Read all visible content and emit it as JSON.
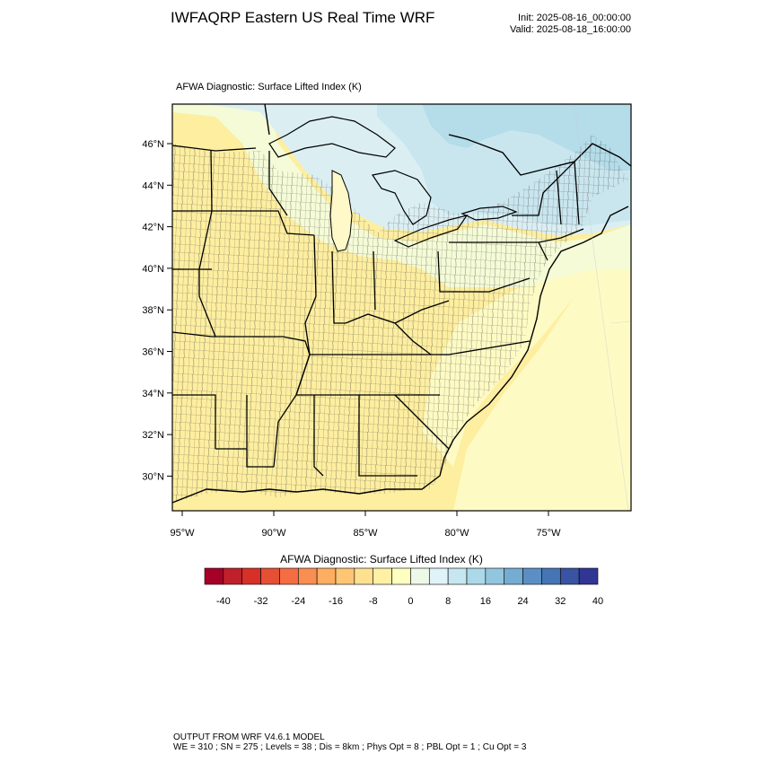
{
  "header": {
    "title": "IWFAQRP Eastern US Real Time WRF",
    "init": "Init: 2025-08-16_00:00:00",
    "valid": "Valid: 2025-08-18_16:00:00"
  },
  "map": {
    "subtitle": "AFWA Diagnostic: Surface Lifted Index   (K)",
    "lat_labels": [
      "46°N",
      "44°N",
      "42°N",
      "40°N",
      "38°N",
      "36°N",
      "34°N",
      "32°N",
      "30°N"
    ],
    "lon_labels": [
      "95°W",
      "90°W",
      "85°W",
      "80°W",
      "75°W"
    ],
    "field_colors": {
      "stable_low": "#fdeea0",
      "stable_mid": "#fefac4",
      "neutral": "#f4fbd6",
      "north": "#dbeff3",
      "lake_region": "#c9e6ef",
      "canada": "#b4dce9"
    }
  },
  "colorbar": {
    "title": "AFWA Diagnostic: Surface Lifted Index  (K)",
    "tick_labels": [
      "-40",
      "-32",
      "-24",
      "-16",
      "-8",
      "0",
      "8",
      "16",
      "24",
      "32",
      "40"
    ],
    "colors": [
      "#a50026",
      "#c0202b",
      "#d73027",
      "#e54f34",
      "#f46d43",
      "#f98e52",
      "#fdae61",
      "#fdc574",
      "#fee090",
      "#fff0a6",
      "#ffffbf",
      "#eef8e6",
      "#e0f3f8",
      "#c6e6f0",
      "#abd9e9",
      "#92c5de",
      "#74add1",
      "#5b8fc4",
      "#4575b4",
      "#3a53a2",
      "#313695"
    ]
  },
  "footer": {
    "line1": "OUTPUT FROM WRF V4.6.1 MODEL",
    "line2": "WE = 310 ; SN = 275 ; Levels = 38 ; Dis = 8km ; Phys Opt = 8 ; PBL Opt = 1 ; Cu Opt = 3"
  }
}
